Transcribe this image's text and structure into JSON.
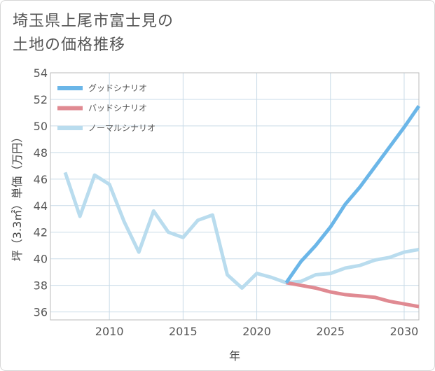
{
  "title": [
    "埼玉県上尾市富士見の",
    "土地の価格推移"
  ],
  "chart_data": {
    "type": "line",
    "title": "埼玉県上尾市富士見の土地の価格推移",
    "xlabel": "年",
    "ylabel": "坪（3.3㎡）単価（万円）",
    "xlim": [
      2006,
      2031
    ],
    "ylim": [
      35.4,
      54
    ],
    "xticks": [
      2010,
      2015,
      2020,
      2025,
      2030
    ],
    "yticks": [
      36,
      38,
      40,
      42,
      44,
      46,
      48,
      50,
      52,
      54
    ],
    "grid": true,
    "legend_position": "top-left",
    "series": [
      {
        "name": "グッドシナリオ",
        "color": "#6bb6e8",
        "x": [
          2022,
          2023,
          2024,
          2025,
          2026,
          2027,
          2028,
          2029,
          2030,
          2031
        ],
        "y": [
          38.2,
          39.8,
          41.0,
          42.4,
          44.1,
          45.4,
          46.9,
          48.4,
          49.9,
          51.5
        ]
      },
      {
        "name": "バッドシナリオ",
        "color": "#e08a92",
        "x": [
          2022,
          2023,
          2024,
          2025,
          2026,
          2027,
          2028,
          2029,
          2030,
          2031
        ],
        "y": [
          38.2,
          38.0,
          37.8,
          37.5,
          37.3,
          37.2,
          37.1,
          36.8,
          36.6,
          36.4
        ]
      },
      {
        "name": "ノーマルシナリオ",
        "color": "#b9dcee",
        "x": [
          2007,
          2008,
          2009,
          2010,
          2011,
          2012,
          2013,
          2014,
          2015,
          2016,
          2017,
          2018,
          2019,
          2020,
          2021,
          2022,
          2023,
          2024,
          2025,
          2026,
          2027,
          2028,
          2029,
          2030,
          2031
        ],
        "y": [
          46.5,
          43.2,
          46.3,
          45.6,
          42.8,
          40.5,
          43.6,
          42.0,
          41.6,
          42.9,
          43.3,
          38.8,
          37.8,
          38.9,
          38.6,
          38.2,
          38.3,
          38.8,
          38.9,
          39.3,
          39.5,
          39.9,
          40.1,
          40.5,
          40.7
        ]
      }
    ]
  }
}
